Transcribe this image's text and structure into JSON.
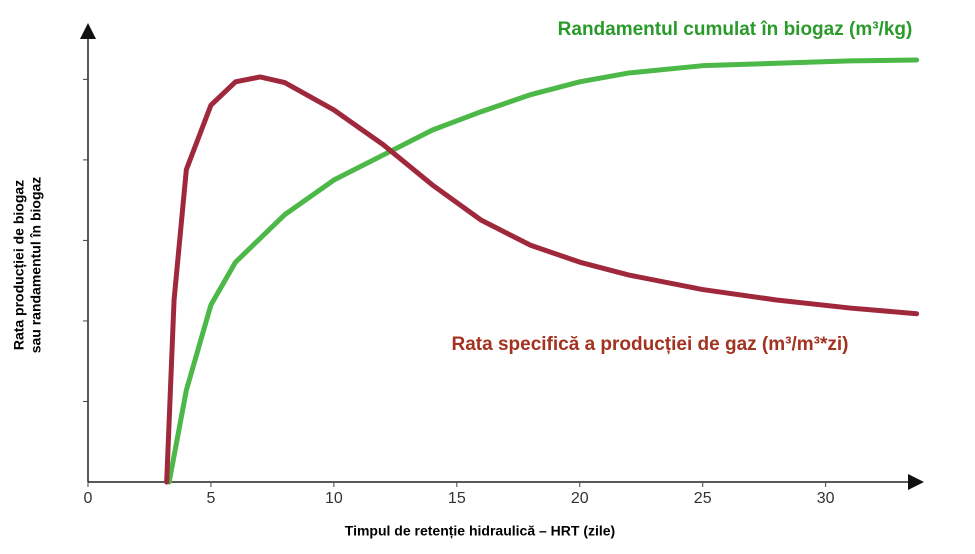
{
  "chart_data": {
    "type": "line",
    "xlabel": "Timpul de retenție hidraulică – HRT (zile)",
    "ylabel": [
      "Rata producției de biogaz",
      "sau randamentul în biogaz"
    ],
    "xlim": [
      0,
      34
    ],
    "xticks": [
      0,
      5,
      10,
      15,
      20,
      25,
      30
    ],
    "ylim": [
      0,
      5.7
    ],
    "yticks": [
      1,
      2,
      3,
      4,
      5
    ],
    "series": [
      {
        "name": "Randamentul cumulat în biogaz (m³/kg)",
        "color": "#4cb848",
        "label_color": "#2a9a2a",
        "x": [
          3.3,
          4,
          5,
          6,
          8,
          10,
          12,
          14,
          16,
          18,
          20,
          22,
          25,
          28,
          31,
          33.7
        ],
        "values": [
          0,
          1.14,
          2.2,
          2.73,
          3.32,
          3.75,
          4.06,
          4.37,
          4.6,
          4.81,
          4.97,
          5.08,
          5.17,
          5.2,
          5.23,
          5.24
        ]
      },
      {
        "name": "Rata specifică a producției de gaz (m³/m³*zi)",
        "color": "#a0283c",
        "label_color": "#a33220",
        "x": [
          3.2,
          3.5,
          4,
          5,
          6,
          7,
          8,
          10,
          12,
          14,
          16,
          18,
          20,
          22,
          25,
          28,
          31,
          33.7
        ],
        "values": [
          0,
          2.26,
          3.88,
          4.68,
          4.97,
          5.03,
          4.96,
          4.62,
          4.19,
          3.69,
          3.25,
          2.94,
          2.73,
          2.57,
          2.39,
          2.26,
          2.16,
          2.09
        ]
      }
    ]
  }
}
